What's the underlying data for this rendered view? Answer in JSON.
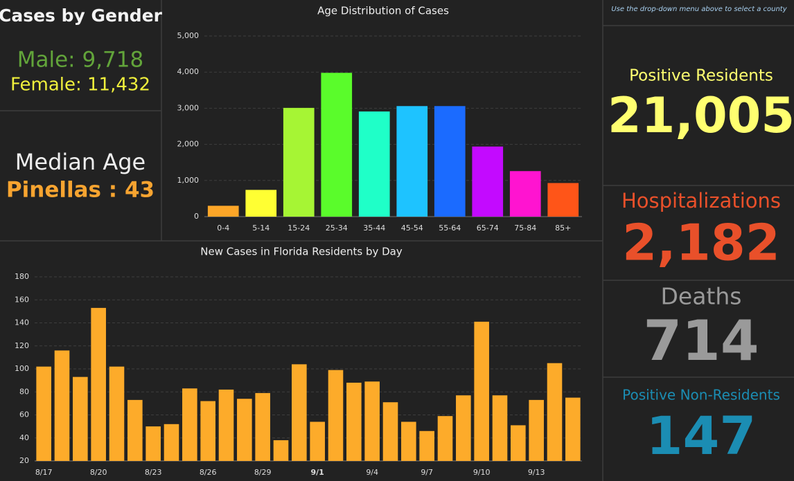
{
  "gender": {
    "title": "Cases by Gender",
    "male": "Male: 9,718",
    "female": "Female: 11,432"
  },
  "median_age": {
    "title": "Median Age",
    "value": "Pinellas : 43"
  },
  "note": "Use the drop-down menu above to select a county",
  "stats": [
    {
      "label": "Positive Residents",
      "value": "21,005",
      "color": "#ffff70"
    },
    {
      "label": "Hospitalizations",
      "value": "2,182",
      "color": "#e9502a"
    },
    {
      "label": "Deaths",
      "value": "714",
      "color": "#9a9a9a"
    },
    {
      "label": "Positive Non-Residents",
      "value": "147",
      "color": "#1b8db3"
    }
  ],
  "chart_data": [
    {
      "type": "bar",
      "title": "Age Distribution of Cases",
      "categories": [
        "0-4",
        "5-14",
        "15-24",
        "25-34",
        "35-44",
        "45-54",
        "55-64",
        "65-74",
        "75-84",
        "85+"
      ],
      "values": [
        300,
        740,
        3010,
        3980,
        2910,
        3060,
        3060,
        1940,
        1260,
        930
      ],
      "colors": [
        "#fda628",
        "#ffff33",
        "#a6f534",
        "#5afc2b",
        "#1fffc8",
        "#1ec3ff",
        "#1b6bff",
        "#c30aff",
        "#ff14d0",
        "#ff5518"
      ],
      "ylim": [
        0,
        5000
      ],
      "yticks": [
        0,
        {
          "value": 1000,
          "label": "1,000"
        },
        {
          "value": 2000,
          "label": "2,000"
        },
        {
          "value": 3000,
          "label": "3,000"
        },
        {
          "value": 4000,
          "label": "4,000"
        },
        {
          "value": 5000,
          "label": "5,000"
        }
      ],
      "grid": true
    },
    {
      "type": "bar",
      "title": "New Cases in Florida Residents by Day",
      "categories": [
        "8/17",
        null,
        null,
        "8/20",
        null,
        null,
        "8/23",
        null,
        null,
        "8/26",
        null,
        null,
        "8/29",
        null,
        null,
        "9/1",
        null,
        null,
        "9/4",
        null,
        null,
        "9/7",
        null,
        null,
        "9/10",
        null,
        null,
        "9/13",
        null,
        null
      ],
      "values": [
        102,
        116,
        93,
        153,
        102,
        73,
        50,
        52,
        83,
        72,
        82,
        74,
        79,
        38,
        104,
        54,
        99,
        88,
        89,
        71,
        54,
        46,
        59,
        77,
        141,
        77,
        51,
        73,
        105,
        75
      ],
      "color": "#fdab2a",
      "ylim": [
        20,
        180
      ],
      "yticks": [
        20,
        40,
        60,
        80,
        100,
        120,
        140,
        160,
        180
      ],
      "grid": true
    }
  ]
}
